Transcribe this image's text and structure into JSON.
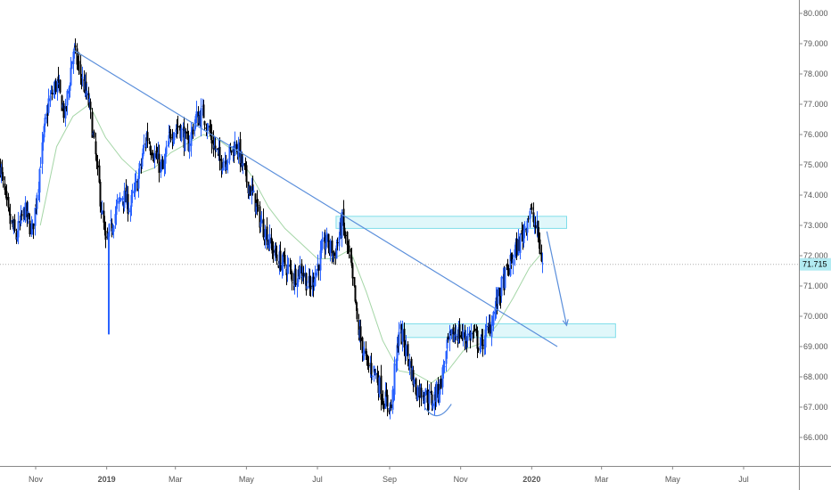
{
  "chart_data": {
    "type": "candlestick",
    "y_axis_position": "right",
    "ylim": [
      65.3,
      80.4
    ],
    "y_ticks": [
      66,
      67,
      68,
      69,
      70,
      71,
      72,
      73,
      74,
      75,
      76,
      77,
      78,
      79,
      80
    ],
    "y_tick_labels": [
      "66.000",
      "67.000",
      "68.000",
      "69.000",
      "70.000",
      "71.000",
      "72.000",
      "73.000",
      "74.000",
      "75.000",
      "76.000",
      "77.000",
      "78.000",
      "79.000",
      "80.000"
    ],
    "x_tick_labels": [
      "Nov",
      "2019",
      "Mar",
      "May",
      "Jul",
      "Sep",
      "Nov",
      "2020",
      "Mar",
      "May",
      "Jul"
    ],
    "x_tick_bold": [
      false,
      true,
      false,
      false,
      false,
      false,
      false,
      true,
      false,
      false,
      false
    ],
    "last_price": 71.715,
    "last_price_label": "71.715",
    "colors": {
      "up_candle": "#2962ff",
      "down_candle": "#000000",
      "moving_average": "#a5d6a7",
      "trendline": "#5b8fdb",
      "zone_fill": "#e0f7fa",
      "zone_border": "#80deea",
      "projection_arrow": "#5b8fdb",
      "price_badge": "#b2ebf2"
    },
    "close_path": [
      [
        "2018-10-01",
        75.0
      ],
      [
        "2018-10-08",
        73.3
      ],
      [
        "2018-10-15",
        72.6
      ],
      [
        "2018-10-22",
        73.5
      ],
      [
        "2018-10-29",
        72.8
      ],
      [
        "2018-11-05",
        75.2
      ],
      [
        "2018-11-12",
        77.1
      ],
      [
        "2018-11-19",
        77.7
      ],
      [
        "2018-11-26",
        76.6
      ],
      [
        "2018-12-03",
        78.8
      ],
      [
        "2018-12-10",
        77.9
      ],
      [
        "2018-12-17",
        76.9
      ],
      [
        "2018-12-24",
        74.6
      ],
      [
        "2018-12-31",
        72.3
      ],
      [
        "2019-01-07",
        73.3
      ],
      [
        "2019-01-14",
        74.0
      ],
      [
        "2019-01-21",
        73.6
      ],
      [
        "2019-01-28",
        74.6
      ],
      [
        "2019-02-04",
        76.0
      ],
      [
        "2019-02-11",
        75.3
      ],
      [
        "2019-02-18",
        74.8
      ],
      [
        "2019-02-25",
        76.1
      ],
      [
        "2019-03-04",
        76.3
      ],
      [
        "2019-03-11",
        75.6
      ],
      [
        "2019-03-18",
        76.5
      ],
      [
        "2019-03-25",
        76.7
      ],
      [
        "2019-04-01",
        75.8
      ],
      [
        "2019-04-08",
        75.1
      ],
      [
        "2019-04-15",
        75.3
      ],
      [
        "2019-04-22",
        75.7
      ],
      [
        "2019-04-29",
        74.7
      ],
      [
        "2019-05-06",
        74.0
      ],
      [
        "2019-05-13",
        73.1
      ],
      [
        "2019-05-20",
        72.5
      ],
      [
        "2019-05-27",
        71.9
      ],
      [
        "2019-06-03",
        71.7
      ],
      [
        "2019-06-10",
        71.3
      ],
      [
        "2019-06-17",
        71.6
      ],
      [
        "2019-06-24",
        70.9
      ],
      [
        "2019-07-01",
        71.7
      ],
      [
        "2019-07-08",
        72.5
      ],
      [
        "2019-07-15",
        72.0
      ],
      [
        "2019-07-22",
        73.1
      ],
      [
        "2019-07-29",
        71.7
      ],
      [
        "2019-08-05",
        69.5
      ],
      [
        "2019-08-12",
        68.4
      ],
      [
        "2019-08-19",
        68.2
      ],
      [
        "2019-08-26",
        67.3
      ],
      [
        "2019-09-02",
        67.0
      ],
      [
        "2019-09-09",
        69.6
      ],
      [
        "2019-09-16",
        68.7
      ],
      [
        "2019-09-23",
        67.6
      ],
      [
        "2019-09-30",
        67.5
      ],
      [
        "2019-10-07",
        67.2
      ],
      [
        "2019-10-14",
        67.7
      ],
      [
        "2019-10-21",
        69.1
      ],
      [
        "2019-10-28",
        69.5
      ],
      [
        "2019-11-04",
        69.3
      ],
      [
        "2019-11-11",
        69.4
      ],
      [
        "2019-11-18",
        69.0
      ],
      [
        "2019-11-25",
        69.6
      ],
      [
        "2019-12-02",
        70.5
      ],
      [
        "2019-12-09",
        71.3
      ],
      [
        "2019-12-16",
        72.0
      ],
      [
        "2019-12-23",
        72.6
      ],
      [
        "2019-12-30",
        73.5
      ],
      [
        "2020-01-06",
        72.7
      ],
      [
        "2020-01-10",
        71.7
      ]
    ],
    "moving_average": [
      [
        "2018-11-05",
        73.0
      ],
      [
        "2018-11-19",
        75.6
      ],
      [
        "2018-12-03",
        76.6
      ],
      [
        "2018-12-17",
        77.0
      ],
      [
        "2018-12-31",
        75.9
      ],
      [
        "2019-01-14",
        75.2
      ],
      [
        "2019-01-28",
        74.7
      ],
      [
        "2019-02-11",
        74.9
      ],
      [
        "2019-02-25",
        75.4
      ],
      [
        "2019-03-11",
        75.7
      ],
      [
        "2019-03-25",
        76.0
      ],
      [
        "2019-04-08",
        75.8
      ],
      [
        "2019-04-22",
        75.4
      ],
      [
        "2019-05-06",
        74.6
      ],
      [
        "2019-05-20",
        73.6
      ],
      [
        "2019-06-03",
        72.9
      ],
      [
        "2019-06-17",
        72.4
      ],
      [
        "2019-07-01",
        71.9
      ],
      [
        "2019-07-15",
        71.9
      ],
      [
        "2019-07-29",
        72.2
      ],
      [
        "2019-08-12",
        70.8
      ],
      [
        "2019-08-26",
        69.2
      ],
      [
        "2019-09-09",
        68.2
      ],
      [
        "2019-09-23",
        68.1
      ],
      [
        "2019-10-07",
        67.8
      ],
      [
        "2019-10-21",
        68.2
      ],
      [
        "2019-11-04",
        68.9
      ],
      [
        "2019-11-18",
        69.1
      ],
      [
        "2019-12-02",
        69.7
      ],
      [
        "2019-12-16",
        70.6
      ],
      [
        "2019-12-30",
        71.6
      ],
      [
        "2020-01-10",
        72.1
      ]
    ],
    "trendline": [
      [
        "2018-12-03",
        78.8
      ],
      [
        "2020-01-23",
        69.0
      ]
    ],
    "resistance_zone": {
      "x": [
        "2019-07-17",
        "2020-01-31"
      ],
      "y": [
        72.9,
        73.3
      ]
    },
    "support_zone": {
      "x": [
        "2019-09-13",
        "2020-03-13"
      ],
      "y": [
        69.3,
        69.75
      ]
    },
    "projection_arrow": [
      [
        "2020-01-14",
        72.8
      ],
      [
        "2020-01-31",
        69.7
      ]
    ],
    "bottom_curve": [
      [
        "2019-10-01",
        67.0
      ],
      [
        "2019-10-12",
        66.8
      ],
      [
        "2019-10-24",
        67.1
      ]
    ]
  }
}
